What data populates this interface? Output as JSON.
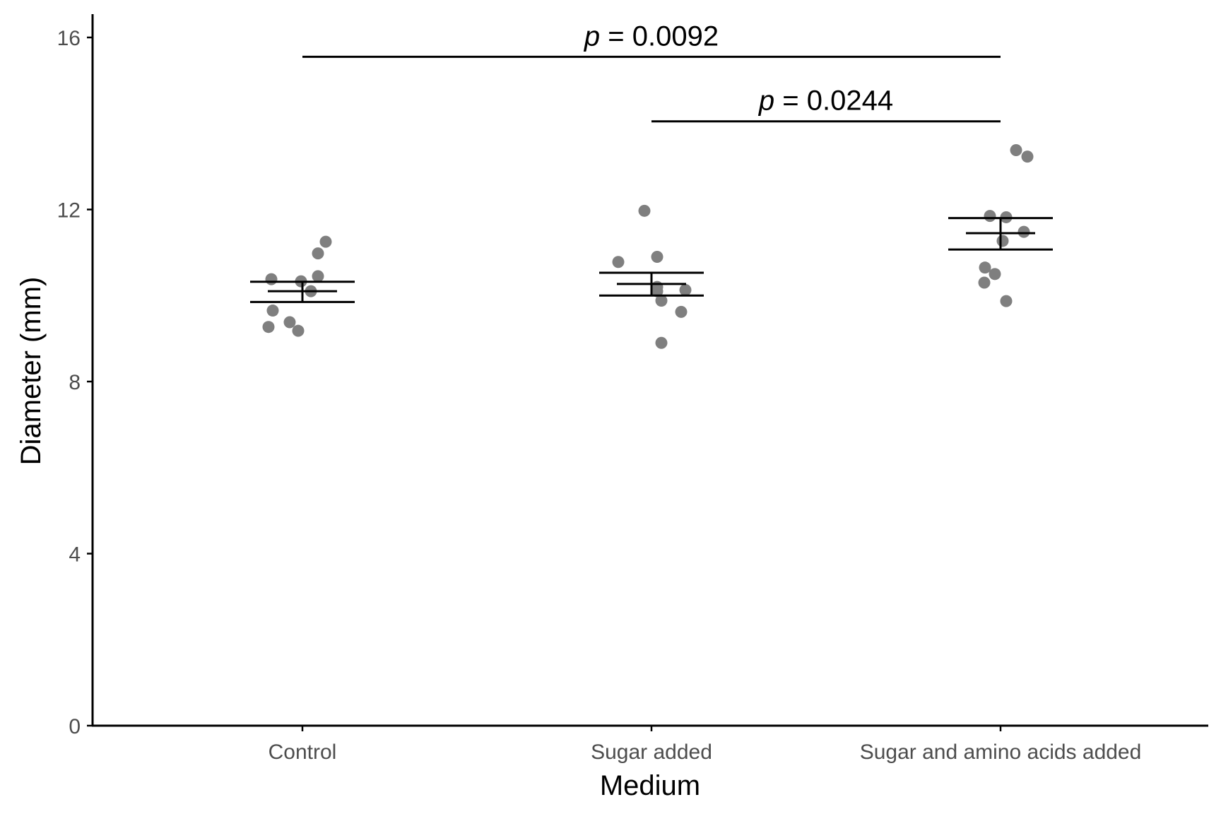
{
  "chart_data": {
    "type": "scatter",
    "xlabel": "Medium",
    "ylabel": "Diameter (mm)",
    "ylim": [
      0,
      16
    ],
    "yticks": [
      0,
      4,
      8,
      12,
      16
    ],
    "grid": false,
    "categories": [
      "Control",
      "Sugar added",
      "Sugar and amino acids added"
    ],
    "point_color": "#7f7f7f",
    "points": [
      {
        "category": "Control",
        "values": [
          11.25,
          10.98,
          10.45,
          10.38,
          10.33,
          10.1,
          9.65,
          9.38,
          9.27,
          9.18
        ]
      },
      {
        "category": "Sugar added",
        "values": [
          11.97,
          10.9,
          10.78,
          10.2,
          10.13,
          10.1,
          9.88,
          9.62,
          8.9
        ]
      },
      {
        "category": "Sugar and amino acids added",
        "values": [
          13.38,
          13.23,
          11.85,
          11.82,
          11.48,
          11.27,
          10.65,
          10.5,
          10.3,
          9.87
        ]
      }
    ],
    "summary": [
      {
        "category": "Control",
        "mean": 10.1,
        "lower": 9.85,
        "upper": 10.32
      },
      {
        "category": "Sugar added",
        "mean": 10.27,
        "lower": 10.0,
        "upper": 10.53
      },
      {
        "category": "Sugar and amino acids added",
        "mean": 11.45,
        "lower": 11.07,
        "upper": 11.8
      }
    ],
    "annotations": [
      {
        "from": "Control",
        "to": "Sugar and amino acids added",
        "y": 15.55,
        "label_prefix": "p",
        "label_suffix": " = 0.0092"
      },
      {
        "from": "Sugar added",
        "to": "Sugar and amino acids added",
        "y": 14.05,
        "label_prefix": "p",
        "label_suffix": " = 0.0244"
      }
    ]
  }
}
